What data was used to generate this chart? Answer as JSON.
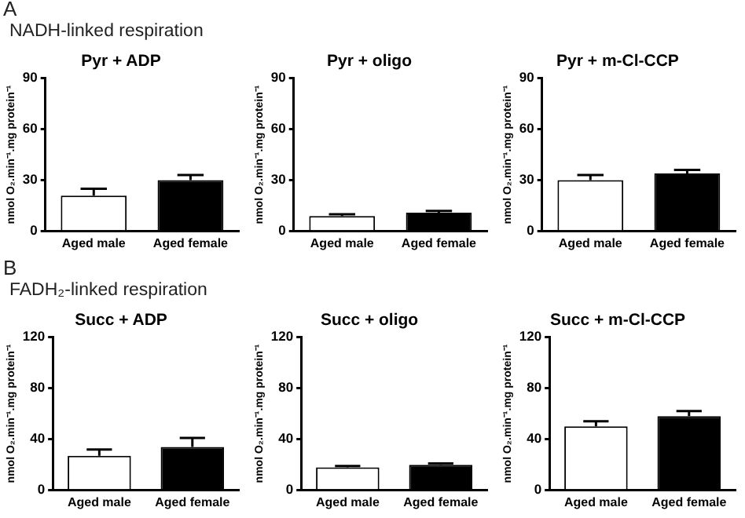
{
  "chart_data": [
    {
      "type": "bar",
      "title": "Pyr + ADP",
      "annotations": [
        "A",
        "NADH-linked respiration"
      ],
      "ylabel": "nmol O₂.min⁻¹.mg protein⁻¹",
      "categories": [
        "Aged male",
        "Aged female"
      ],
      "values": [
        21,
        30
      ],
      "colors": [
        "#ffffff",
        "#000000"
      ],
      "errors": [
        [
          21,
          25
        ],
        [
          30,
          33
        ]
      ],
      "ylim": [
        0,
        90
      ],
      "yticks": [
        0,
        30,
        60,
        90
      ],
      "grid": false,
      "legend": false
    },
    {
      "type": "bar",
      "title": "Pyr + oligo",
      "ylabel": "nmol O₂.min⁻¹.mg protein⁻¹",
      "categories": [
        "Aged male",
        "Aged female"
      ],
      "values": [
        9,
        11
      ],
      "colors": [
        "#ffffff",
        "#000000"
      ],
      "errors": [
        [
          9,
          10
        ],
        [
          11,
          12
        ]
      ],
      "ylim": [
        0,
        90
      ],
      "yticks": [
        0,
        30,
        60,
        90
      ],
      "grid": false,
      "legend": false
    },
    {
      "type": "bar",
      "title": "Pyr + m-Cl-CCP",
      "ylabel": "nmol O₂.min⁻¹.mg protein⁻¹",
      "categories": [
        "Aged male",
        "Aged female"
      ],
      "values": [
        30,
        34
      ],
      "colors": [
        "#ffffff",
        "#000000"
      ],
      "errors": [
        [
          30,
          33
        ],
        [
          34,
          36
        ]
      ],
      "ylim": [
        0,
        90
      ],
      "yticks": [
        0,
        30,
        60,
        90
      ],
      "grid": false,
      "legend": false
    },
    {
      "type": "bar",
      "title": "Succ + ADP",
      "annotations": [
        "B",
        "FADH₂-linked respiration"
      ],
      "ylabel": "nmol O₂.min⁻¹.mg protein⁻¹",
      "categories": [
        "Aged male",
        "Aged female"
      ],
      "values": [
        27,
        34
      ],
      "colors": [
        "#ffffff",
        "#000000"
      ],
      "errors": [
        [
          27,
          32
        ],
        [
          34,
          41
        ]
      ],
      "ylim": [
        0,
        120
      ],
      "yticks": [
        0,
        40,
        80,
        120
      ],
      "grid": false,
      "legend": false
    },
    {
      "type": "bar",
      "title": "Succ + oligo",
      "ylabel": "nmol O₂.min⁻¹.mg protein⁻¹",
      "categories": [
        "Aged male",
        "Aged female"
      ],
      "values": [
        18,
        20
      ],
      "colors": [
        "#ffffff",
        "#000000"
      ],
      "errors": [
        [
          18,
          19
        ],
        [
          20,
          21
        ]
      ],
      "ylim": [
        0,
        120
      ],
      "yticks": [
        0,
        40,
        80,
        120
      ],
      "grid": false,
      "legend": false
    },
    {
      "type": "bar",
      "title": "Succ + m-Cl-CCP",
      "ylabel": "nmol O₂.min⁻¹.mg protein⁻¹",
      "categories": [
        "Aged male",
        "Aged female"
      ],
      "values": [
        50,
        58
      ],
      "colors": [
        "#ffffff",
        "#000000"
      ],
      "errors": [
        [
          50,
          54
        ],
        [
          58,
          62
        ]
      ],
      "ylim": [
        0,
        120
      ],
      "yticks": [
        0,
        40,
        80,
        120
      ],
      "grid": false,
      "legend": false
    }
  ]
}
